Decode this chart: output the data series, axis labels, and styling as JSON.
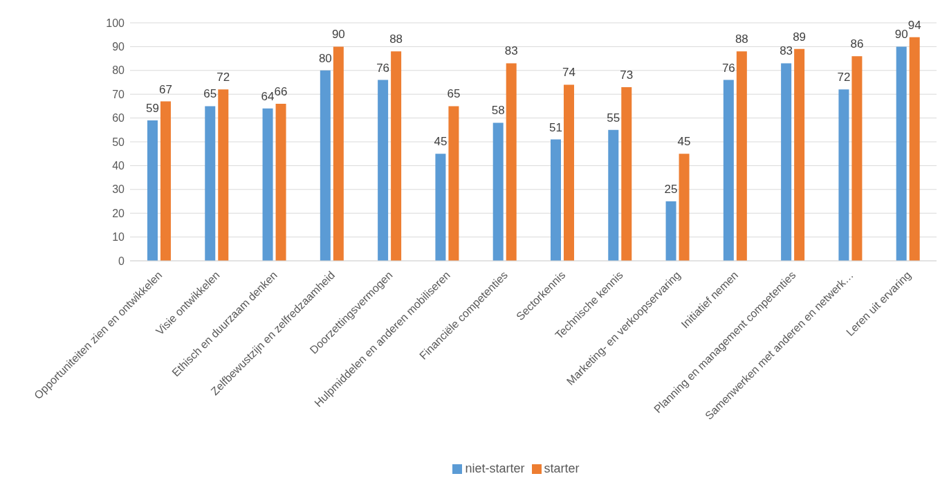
{
  "chart_data": {
    "type": "bar",
    "categories": [
      "Opportuniteiten zien en ontwikkelen",
      "Visie ontwikkelen",
      "Ethisch en duurzaam denken",
      "Zelfbewustzijn en zelfredzaamheid",
      "Doorzettingsvermogen",
      "Hulpmiddelen en anderen mobiliseren",
      "Financiële competenties",
      "Sectorkennis",
      "Technische kennis",
      "Marketing- en verkoopservaring",
      "Initiatief nemen",
      "Planning en management competenties",
      "Samenwerken met anderen en netwerk…",
      "Leren uit ervaring"
    ],
    "series": [
      {
        "name": "niet-starter",
        "color": "#5b9bd5",
        "values": [
          59,
          65,
          64,
          80,
          76,
          45,
          58,
          51,
          55,
          25,
          76,
          83,
          72,
          90
        ]
      },
      {
        "name": "starter",
        "color": "#ed7d31",
        "values": [
          67,
          72,
          66,
          90,
          88,
          65,
          83,
          74,
          73,
          45,
          88,
          89,
          86,
          94
        ]
      }
    ],
    "ylim": [
      0,
      100
    ],
    "yticks": [
      0,
      10,
      20,
      30,
      40,
      50,
      60,
      70,
      80,
      90,
      100
    ],
    "grid": "y",
    "legend": "bottom",
    "data_labels": true
  }
}
